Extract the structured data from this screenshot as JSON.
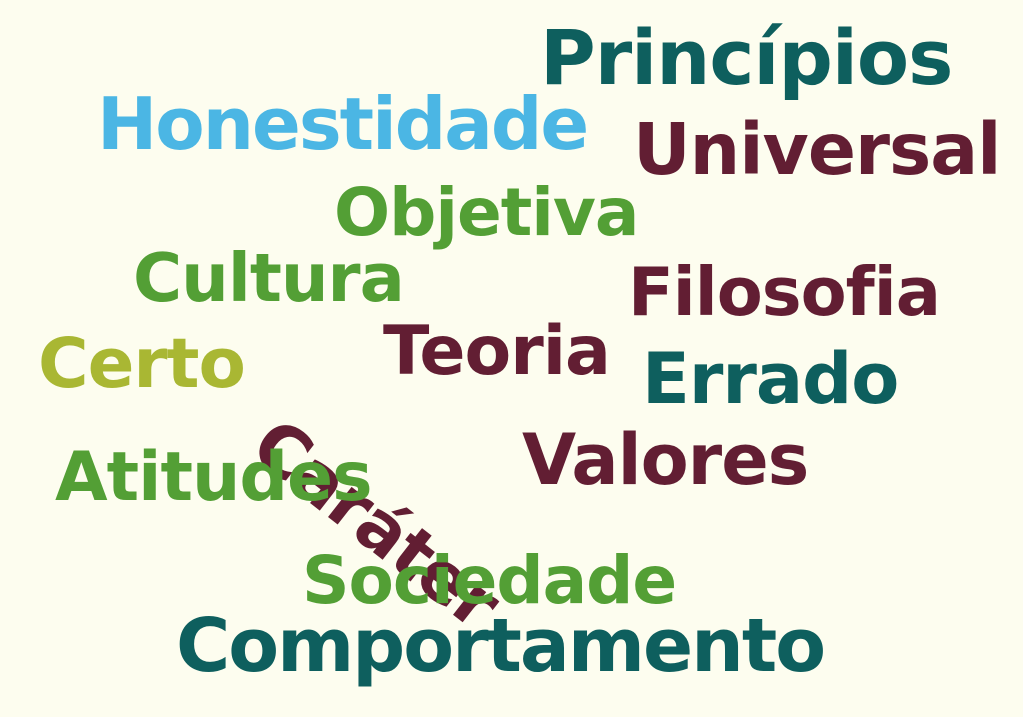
{
  "colors": {
    "background": "#fdfdef",
    "teal": "#0e5f5e",
    "sky_blue": "#4bb6e4",
    "maroon": "#621e33",
    "green": "#539f35",
    "olive": "#a9b733"
  },
  "words": {
    "principios": {
      "text": "Princípios",
      "color": "#0e5f5e"
    },
    "honestidade": {
      "text": "Honestidade",
      "color": "#4bb6e4"
    },
    "universal": {
      "text": "Universal",
      "color": "#621e33"
    },
    "objetiva": {
      "text": "Objetiva",
      "color": "#539f35"
    },
    "cultura": {
      "text": "Cultura",
      "color": "#539f35"
    },
    "filosofia": {
      "text": "Filosofia",
      "color": "#621e33"
    },
    "certo": {
      "text": "Certo",
      "color": "#a9b733"
    },
    "teoria": {
      "text": "Teoria",
      "color": "#621e33"
    },
    "errado": {
      "text": "Errado",
      "color": "#0e5f5e"
    },
    "carater": {
      "text": "Caráter",
      "color": "#621e33"
    },
    "valores": {
      "text": "Valores",
      "color": "#621e33"
    },
    "atitudes": {
      "text": "Atitudes",
      "color": "#539f35"
    },
    "sociedade": {
      "text": "Sociedade",
      "color": "#539f35"
    },
    "comportamento": {
      "text": "Comportamento",
      "color": "#0e5f5e"
    }
  }
}
